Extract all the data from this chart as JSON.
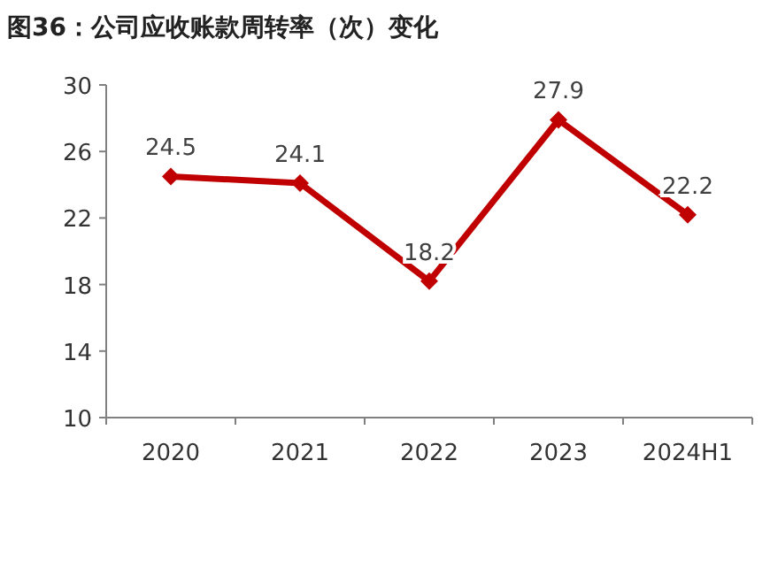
{
  "chart_data": {
    "type": "line",
    "title": "图36：公司应收账款周转率（次）变化",
    "categories": [
      "2020",
      "2021",
      "2022",
      "2023",
      "2024H1"
    ],
    "values": [
      24.5,
      24.1,
      18.2,
      27.9,
      22.2
    ],
    "color": "#c00000",
    "ylim": [
      10,
      30
    ],
    "yticks": [
      10,
      14,
      18,
      22,
      26,
      30
    ],
    "marker": "diamond",
    "data_labels": true
  }
}
